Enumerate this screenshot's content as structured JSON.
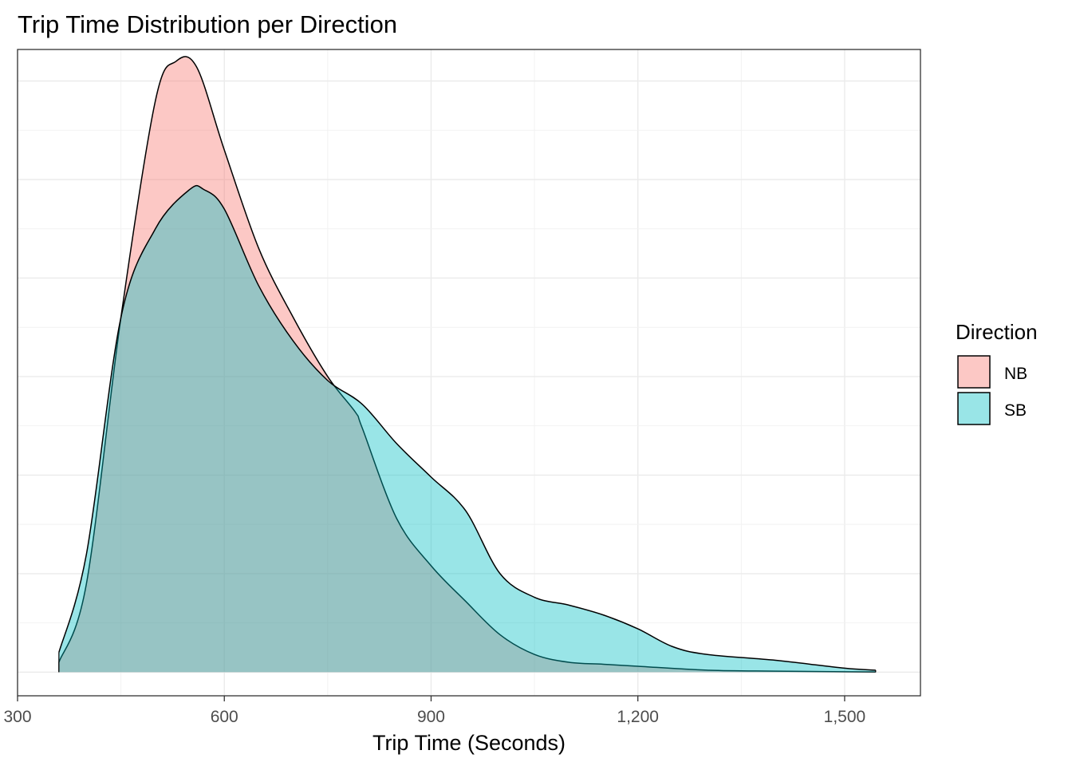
{
  "chart_data": {
    "type": "area",
    "title": "Trip Time Distribution per Direction",
    "xlabel": "Trip Time (Seconds)",
    "ylabel": "",
    "xlim": [
      300,
      1610
    ],
    "ylim": [
      -0.00012,
      0.00316
    ],
    "x_ticks": [
      300,
      600,
      900,
      1200,
      1500
    ],
    "x_tick_labels": [
      "300",
      "600",
      "900",
      "1,200",
      "1,500"
    ],
    "grid": true,
    "legend": {
      "title": "Direction",
      "position": "right",
      "entries": [
        "NB",
        "SB"
      ]
    },
    "series": [
      {
        "name": "NB",
        "color": "#F8766D",
        "x": [
          360,
          400,
          450,
          500,
          530,
          560,
          600,
          650,
          700,
          750,
          790,
          800,
          850,
          900,
          950,
          1000,
          1050,
          1100,
          1150,
          1200,
          1300,
          1400,
          1500,
          1545
        ],
        "y": [
          5e-05,
          0.00045,
          0.0018,
          0.0029,
          0.0031,
          0.00307,
          0.00265,
          0.00215,
          0.0018,
          0.0015,
          0.00132,
          0.00124,
          0.00078,
          0.00054,
          0.00036,
          0.00019,
          9e-05,
          5e-05,
          4e-05,
          3e-05,
          1e-05,
          5e-06,
          2e-06,
          1e-06
        ]
      },
      {
        "name": "SB",
        "color": "#00BFC4",
        "x": [
          360,
          400,
          450,
          500,
          550,
          570,
          600,
          650,
          700,
          750,
          800,
          850,
          900,
          950,
          1000,
          1050,
          1100,
          1150,
          1200,
          1250,
          1300,
          1400,
          1500,
          1545
        ],
        "y": [
          0.0001,
          0.0006,
          0.0018,
          0.00225,
          0.00245,
          0.00245,
          0.00235,
          0.00196,
          0.00168,
          0.00148,
          0.00136,
          0.00116,
          0.00099,
          0.00082,
          0.0005,
          0.00038,
          0.00034,
          0.00029,
          0.00022,
          0.00013,
          9e-05,
          6e-05,
          2e-05,
          1e-05
        ]
      }
    ]
  }
}
